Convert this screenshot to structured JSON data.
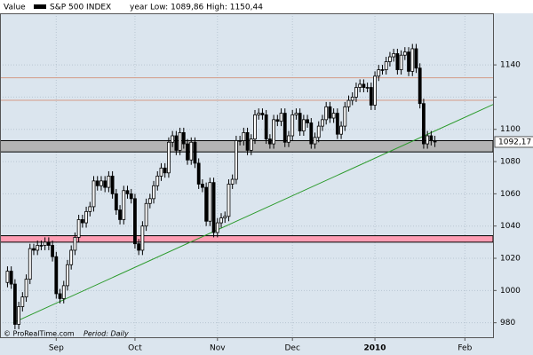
{
  "header": {
    "label": "Value",
    "legend": "S&P 500 INDEX",
    "range": "year Low: 1089,86 High: 1150,44"
  },
  "footer": {
    "credit": "© ProRealTime.com",
    "period": "Period: Daily"
  },
  "chart_data": {
    "type": "candlestick",
    "up_color": "#ffffff",
    "down_color": "#000000",
    "xlim": [
      -2,
      129.5
    ],
    "xticks": [
      {
        "value": 13,
        "label": "Sep"
      },
      {
        "value": 34,
        "label": "Oct"
      },
      {
        "value": 56,
        "label": "Nov"
      },
      {
        "value": 76,
        "label": "Dec"
      },
      {
        "value": 98,
        "label": "2010"
      },
      {
        "value": 122,
        "label": "Feb"
      }
    ],
    "ylim": [
      971,
      1172
    ],
    "yticks": [
      980,
      1000,
      1020,
      1040,
      1060,
      1080,
      1100,
      1120,
      1140
    ],
    "ytick_labels": [
      980,
      1000,
      1020,
      1040,
      1060,
      1080,
      1100,
      null,
      1140
    ],
    "grid": true,
    "open": [
      1005,
      1012,
      1004,
      979,
      990,
      996,
      1007,
      1026,
      1025,
      1028,
      1028,
      1030,
      1028,
      1021,
      998,
      995,
      1003,
      1016,
      1025,
      1033,
      1044,
      1042,
      1049,
      1052,
      1068,
      1065,
      1068,
      1064,
      1071,
      1060,
      1050,
      1044,
      1062,
      1060,
      1057,
      1029,
      1025,
      1040,
      1054,
      1057,
      1065,
      1071,
      1076,
      1073,
      1092,
      1096,
      1087,
      1098,
      1091,
      1081,
      1092,
      1079,
      1066,
      1064,
      1043,
      1067,
      1036,
      1042,
      1045,
      1046,
      1066,
      1069,
      1093,
      1093,
      1098,
      1087,
      1094,
      1109,
      1110,
      1109,
      1094,
      1091,
      1106,
      1105,
      1110,
      1092,
      1096,
      1109,
      1110,
      1099,
      1106,
      1104,
      1091,
      1095,
      1102,
      1106,
      1114,
      1107,
      1110,
      1097,
      1102,
      1114,
      1118,
      1120,
      1126,
      1128,
      1126,
      1126,
      1115,
      1133,
      1137,
      1137,
      1142,
      1145,
      1147,
      1137,
      1146,
      1148,
      1136,
      1150,
      1138,
      1116,
      1091,
      1096,
      1093
    ],
    "high": [
      1015,
      1015,
      1007,
      993,
      999,
      1010,
      1029,
      1029,
      1031,
      1031,
      1033,
      1033,
      1031,
      1024,
      1001,
      1006,
      1019,
      1028,
      1036,
      1047,
      1047,
      1052,
      1055,
      1071,
      1071,
      1071,
      1071,
      1074,
      1074,
      1063,
      1053,
      1065,
      1065,
      1063,
      1060,
      1032,
      1043,
      1057,
      1060,
      1068,
      1074,
      1079,
      1079,
      1095,
      1099,
      1099,
      1101,
      1101,
      1094,
      1095,
      1095,
      1082,
      1069,
      1067,
      1070,
      1070,
      1045,
      1048,
      1049,
      1069,
      1072,
      1096,
      1096,
      1101,
      1101,
      1097,
      1112,
      1113,
      1113,
      1112,
      1097,
      1109,
      1109,
      1113,
      1113,
      1099,
      1112,
      1113,
      1113,
      1109,
      1109,
      1107,
      1098,
      1105,
      1109,
      1117,
      1117,
      1113,
      1113,
      1105,
      1117,
      1121,
      1123,
      1129,
      1131,
      1131,
      1129,
      1129,
      1136,
      1140,
      1140,
      1145,
      1148,
      1150,
      1150,
      1149,
      1151,
      1151,
      1153,
      1153,
      1141,
      1119,
      1099,
      1099,
      1096
    ],
    "low": [
      1002,
      1001,
      976,
      976,
      987,
      993,
      1004,
      1022,
      1022,
      1025,
      1025,
      1025,
      1018,
      995,
      992,
      992,
      1000,
      1013,
      1022,
      1030,
      1039,
      1039,
      1046,
      1049,
      1062,
      1062,
      1061,
      1061,
      1057,
      1047,
      1041,
      1041,
      1057,
      1054,
      1026,
      1022,
      1022,
      1037,
      1051,
      1054,
      1062,
      1068,
      1070,
      1070,
      1089,
      1084,
      1084,
      1088,
      1078,
      1078,
      1076,
      1063,
      1061,
      1040,
      1040,
      1033,
      1033,
      1039,
      1042,
      1043,
      1063,
      1066,
      1090,
      1090,
      1084,
      1084,
      1091,
      1106,
      1106,
      1091,
      1088,
      1088,
      1102,
      1102,
      1089,
      1089,
      1093,
      1106,
      1096,
      1096,
      1101,
      1088,
      1088,
      1092,
      1099,
      1103,
      1104,
      1104,
      1094,
      1094,
      1099,
      1111,
      1115,
      1117,
      1123,
      1123,
      1123,
      1112,
      1112,
      1130,
      1134,
      1134,
      1139,
      1142,
      1134,
      1134,
      1143,
      1133,
      1133,
      1135,
      1113,
      1088,
      1088,
      1090,
      1089
    ],
    "close": [
      1012,
      1004,
      979,
      990,
      996,
      1007,
      1026,
      1025,
      1028,
      1028,
      1030,
      1028,
      1021,
      998,
      995,
      1003,
      1016,
      1025,
      1033,
      1044,
      1042,
      1049,
      1052,
      1068,
      1065,
      1068,
      1064,
      1071,
      1060,
      1050,
      1044,
      1062,
      1060,
      1057,
      1029,
      1025,
      1040,
      1054,
      1057,
      1065,
      1071,
      1076,
      1073,
      1092,
      1096,
      1087,
      1098,
      1091,
      1081,
      1092,
      1079,
      1066,
      1064,
      1043,
      1067,
      1036,
      1042,
      1045,
      1046,
      1066,
      1069,
      1093,
      1093,
      1098,
      1087,
      1094,
      1109,
      1110,
      1109,
      1094,
      1091,
      1106,
      1105,
      1110,
      1092,
      1096,
      1109,
      1110,
      1099,
      1106,
      1104,
      1091,
      1095,
      1102,
      1106,
      1114,
      1107,
      1110,
      1097,
      1102,
      1114,
      1118,
      1120,
      1126,
      1128,
      1126,
      1126,
      1115,
      1133,
      1137,
      1137,
      1142,
      1145,
      1147,
      1137,
      1146,
      1148,
      1136,
      1150,
      1138,
      1116,
      1091,
      1096,
      1093,
      1092.17
    ],
    "last_value": {
      "value": 1092.17,
      "label": "1092,17"
    },
    "bands": [
      {
        "from": 1030,
        "to": 1034,
        "color": "#ff9db3"
      },
      {
        "from": 1086,
        "to": 1093,
        "color": "#b4b4b4"
      }
    ],
    "hlines": [
      {
        "value": 1132,
        "color": "#d49a86"
      },
      {
        "value": 1118,
        "color": "#d49a86"
      }
    ],
    "trendline": {
      "x": [
        1.5,
        131
      ],
      "y": [
        980,
        1117
      ],
      "color": "#2a9a2a"
    }
  }
}
